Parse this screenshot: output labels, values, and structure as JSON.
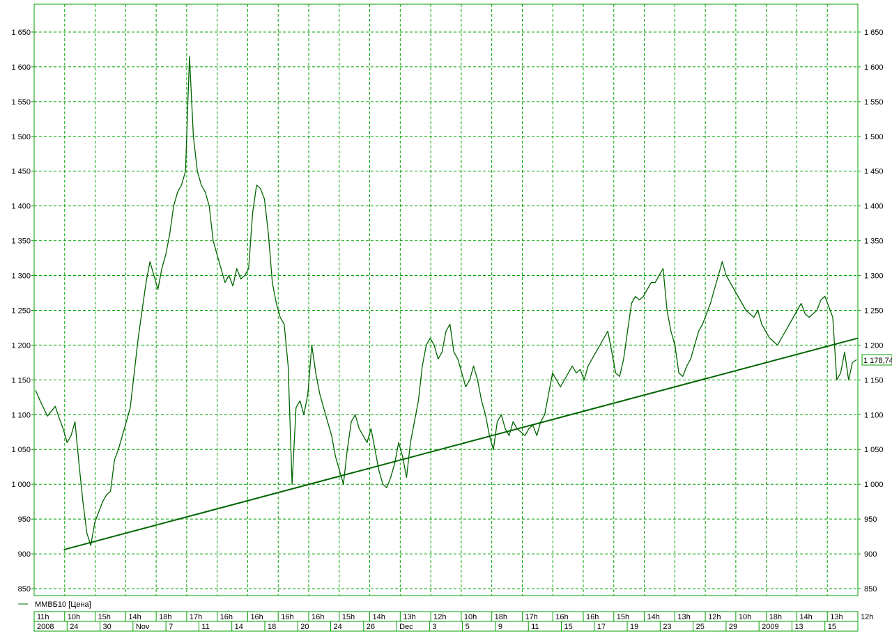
{
  "chart_data": {
    "type": "line",
    "ylim": [
      840,
      1690
    ],
    "y_ticks": [
      "1 650",
      "1 600",
      "1 550",
      "1 500",
      "1 450",
      "1 400",
      "1 350",
      "1 300",
      "1 250",
      "1 200",
      "1 150",
      "1 100",
      "1 050",
      "1 000",
      "950",
      "900",
      "850"
    ],
    "y_tick_values": [
      1650,
      1600,
      1550,
      1500,
      1450,
      1400,
      1350,
      1300,
      1250,
      1200,
      1150,
      1100,
      1050,
      1000,
      950,
      900,
      850
    ],
    "grid": true,
    "current_value_label": "1 178,74",
    "current_value": 1178.74,
    "x_row1_labels": [
      "11h",
      "10h",
      "15h",
      "14h",
      "18h",
      "17h",
      "16h",
      "16h",
      "16h",
      "16h",
      "15h",
      "14h",
      "13h",
      "12h",
      "10h",
      "18h",
      "17h",
      "16h",
      "16h",
      "15h",
      "14h",
      "13h",
      "12h",
      "10h",
      "18h",
      "14h",
      "13h",
      "12h"
    ],
    "x_row2_labels": [
      "2008",
      "24",
      "30",
      "Nov",
      "7",
      "11",
      "14",
      "18",
      "20",
      "24",
      "26",
      "Dec",
      "3",
      "5",
      "9",
      "11",
      "15",
      "17",
      "19",
      "23",
      "25",
      "29",
      "2009",
      "13",
      "15"
    ],
    "series": [
      {
        "name": "ММВБ10 [Цена]",
        "color": "#006400",
        "values": [
          1135,
          1122,
          1110,
          1098,
          1105,
          1112,
          1095,
          1080,
          1060,
          1070,
          1090,
          1030,
          975,
          930,
          912,
          945,
          960,
          975,
          985,
          990,
          1035,
          1050,
          1070,
          1090,
          1110,
          1160,
          1210,
          1250,
          1290,
          1320,
          1300,
          1280,
          1310,
          1330,
          1360,
          1400,
          1420,
          1430,
          1450,
          1615,
          1500,
          1450,
          1430,
          1420,
          1400,
          1350,
          1330,
          1310,
          1290,
          1300,
          1285,
          1310,
          1295,
          1300,
          1310,
          1390,
          1430,
          1425,
          1410,
          1360,
          1290,
          1260,
          1240,
          1230,
          1170,
          1000,
          1110,
          1120,
          1100,
          1130,
          1200,
          1160,
          1130,
          1110,
          1090,
          1070,
          1040,
          1020,
          1000,
          1050,
          1090,
          1100,
          1080,
          1070,
          1060,
          1080,
          1050,
          1020,
          1000,
          995,
          1010,
          1030,
          1060,
          1040,
          1010,
          1060,
          1090,
          1120,
          1170,
          1200,
          1210,
          1200,
          1180,
          1190,
          1220,
          1230,
          1190,
          1180,
          1160,
          1140,
          1150,
          1170,
          1150,
          1120,
          1100,
          1070,
          1050,
          1090,
          1100,
          1080,
          1070,
          1090,
          1080,
          1075,
          1070,
          1080,
          1085,
          1070,
          1090,
          1100,
          1130,
          1160,
          1150,
          1140,
          1150,
          1160,
          1170,
          1160,
          1165,
          1150,
          1170,
          1180,
          1190,
          1200,
          1210,
          1220,
          1190,
          1160,
          1155,
          1180,
          1220,
          1260,
          1270,
          1265,
          1270,
          1280,
          1290,
          1290,
          1300,
          1310,
          1250,
          1220,
          1200,
          1160,
          1155,
          1170,
          1180,
          1200,
          1220,
          1230,
          1245,
          1260,
          1280,
          1300,
          1320,
          1300,
          1290,
          1280,
          1270,
          1260,
          1250,
          1245,
          1240,
          1250,
          1230,
          1220,
          1210,
          1205,
          1200,
          1210,
          1220,
          1230,
          1240,
          1250,
          1260,
          1245,
          1240,
          1245,
          1250,
          1265,
          1270,
          1255,
          1240,
          1150,
          1160,
          1190,
          1150,
          1175,
          1179
        ]
      }
    ],
    "trendline": {
      "x0_frac": 0.036,
      "y0": 906,
      "x1_frac": 1.0,
      "y1": 1210
    }
  }
}
